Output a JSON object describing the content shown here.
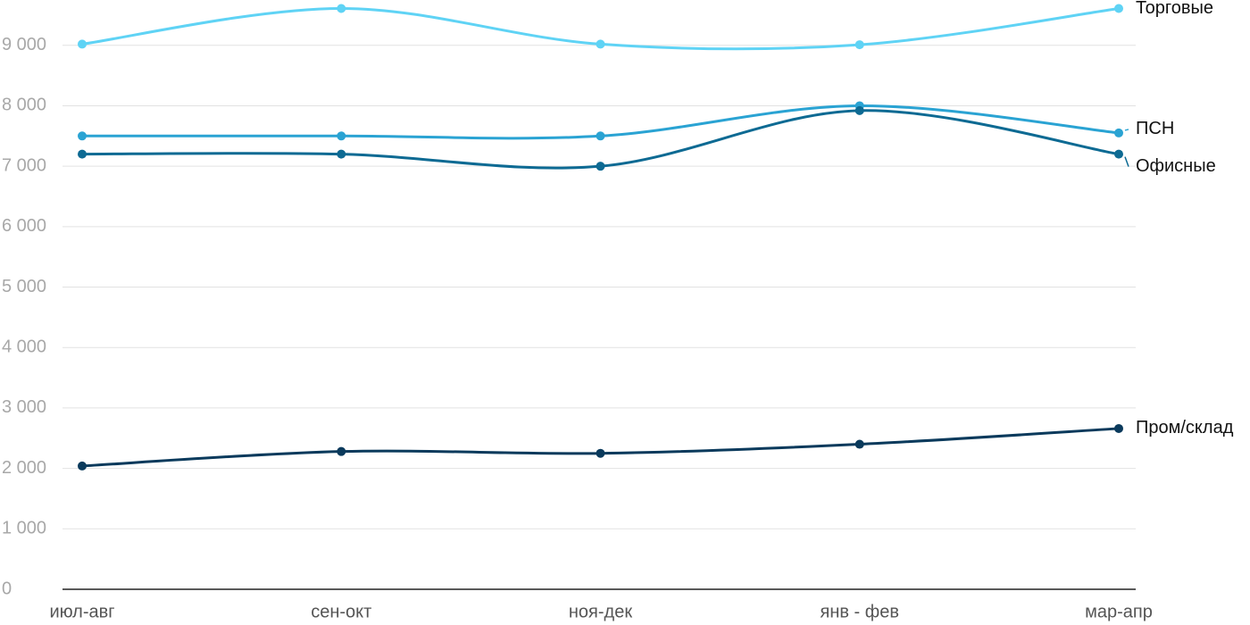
{
  "chart_data": {
    "type": "line",
    "categories": [
      "июл-авг",
      "сен-окт",
      "ноя-дек",
      "янв - фев",
      "мар-апр"
    ],
    "series": [
      {
        "name": "Торговые",
        "color": "#5fd3f5",
        "values": [
          9020,
          9610,
          9020,
          9010,
          9610
        ]
      },
      {
        "name": "ПСН",
        "color": "#2aa3d3",
        "values": [
          7500,
          7500,
          7500,
          8000,
          7550
        ]
      },
      {
        "name": "Офисные",
        "color": "#0d6a93",
        "values": [
          7200,
          7200,
          7000,
          7920,
          7200
        ]
      },
      {
        "name": "Пром/склад",
        "color": "#0a3a5c",
        "values": [
          2040,
          2280,
          2250,
          2400,
          2660
        ]
      }
    ],
    "ylim": [
      0,
      9750
    ],
    "yticks": [
      0,
      {
        "value": 1000,
        "label": "1 000"
      },
      {
        "value": 2000,
        "label": "2 000"
      },
      {
        "value": 3000,
        "label": "3 000"
      },
      {
        "value": 4000,
        "label": "4 000"
      },
      {
        "value": 5000,
        "label": "5 000"
      },
      {
        "value": 6000,
        "label": "6 000"
      },
      {
        "value": 7000,
        "label": "7 000"
      },
      {
        "value": 8000,
        "label": "8 000"
      },
      {
        "value": 9000,
        "label": "9 000"
      }
    ],
    "grid": true
  }
}
